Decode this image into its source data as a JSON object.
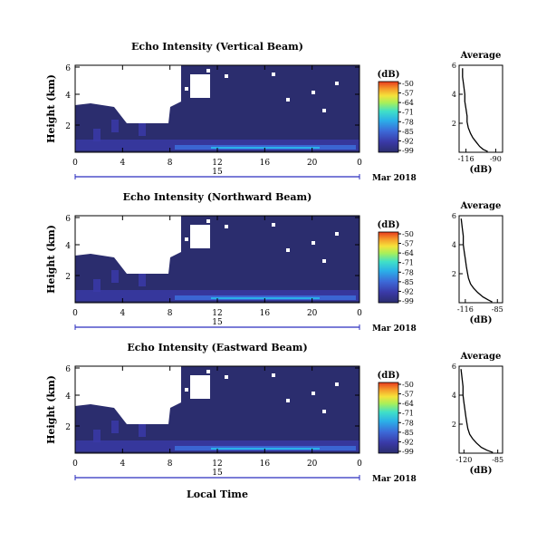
{
  "figure": {
    "xlabel": "Local Time",
    "date_label": "Mar 2018",
    "day_label": "15",
    "unit_label": "(dB)",
    "average_title": "Average",
    "average_xlabel": "(dB)",
    "colorbar_ticks": [
      "-50",
      "-57",
      "-64",
      "-71",
      "-78",
      "-85",
      "-92",
      "-99"
    ],
    "colors": {
      "background_echo": "#2b2d6e",
      "colorbar": [
        "#2b2d6e",
        "#3a3aa8",
        "#3c6ad8",
        "#2bb0e8",
        "#3fe0c8",
        "#a8f05a",
        "#f5e23a",
        "#f59a2a",
        "#e83a1e"
      ]
    }
  },
  "chart_data": [
    {
      "type": "heatmap",
      "title": "Echo Intensity (Vertical Beam)",
      "ylabel": "Height (km)",
      "xticks": [
        "0",
        "4",
        "8",
        "12",
        "16",
        "20",
        "0"
      ],
      "yticks": [
        "6",
        "4",
        "2"
      ],
      "xlim": [
        0,
        24
      ],
      "ylim": [
        0,
        6
      ],
      "zlim": [
        -99,
        -50
      ],
      "average": {
        "xticks": [
          "-116",
          "-90"
        ],
        "yticks": [
          "6",
          "4",
          "2"
        ],
        "xlim": [
          -122,
          -84
        ],
        "ylim": [
          0,
          6
        ],
        "x": [
          -119,
          -119,
          -118,
          -117,
          -117,
          -116,
          -115,
          -115,
          -114,
          -112,
          -110,
          -107,
          -104,
          -101,
          -97
        ],
        "y": [
          5.8,
          5.2,
          4.6,
          4.0,
          3.5,
          3.0,
          2.5,
          2.1,
          1.7,
          1.3,
          1.0,
          0.7,
          0.4,
          0.2,
          0.05
        ]
      }
    },
    {
      "type": "heatmap",
      "title": "Echo Intensity (Northward Beam)",
      "ylabel": "Height (km)",
      "xticks": [
        "0",
        "4",
        "8",
        "12",
        "16",
        "20",
        "0"
      ],
      "yticks": [
        "6",
        "4",
        "2"
      ],
      "xlim": [
        0,
        24
      ],
      "ylim": [
        0,
        6
      ],
      "zlim": [
        -99,
        -50
      ],
      "average": {
        "xticks": [
          "-116",
          "-85"
        ],
        "yticks": [
          "6",
          "4",
          "2"
        ],
        "xlim": [
          -122,
          -80
        ],
        "ylim": [
          0,
          6
        ],
        "x": [
          -120,
          -119,
          -118,
          -118,
          -117,
          -116,
          -115,
          -114,
          -113,
          -111,
          -108,
          -104,
          -99,
          -94,
          -90
        ],
        "y": [
          5.8,
          5.2,
          4.6,
          4.0,
          3.5,
          3.0,
          2.5,
          2.1,
          1.7,
          1.3,
          1.0,
          0.7,
          0.4,
          0.2,
          0.05
        ]
      }
    },
    {
      "type": "heatmap",
      "title": "Echo Intensity (Eastward Beam)",
      "ylabel": "Height (km)",
      "xticks": [
        "0",
        "4",
        "8",
        "12",
        "16",
        "20",
        "0"
      ],
      "yticks": [
        "6",
        "4",
        "2"
      ],
      "xlim": [
        0,
        24
      ],
      "ylim": [
        0,
        6
      ],
      "zlim": [
        -99,
        -50
      ],
      "average": {
        "xticks": [
          "-120",
          "-85"
        ],
        "yticks": [
          "6",
          "4",
          "2"
        ],
        "xlim": [
          -125,
          -80
        ],
        "ylim": [
          0,
          6
        ],
        "x": [
          -123,
          -122,
          -121,
          -121,
          -120,
          -119,
          -118,
          -117,
          -116,
          -114,
          -111,
          -107,
          -102,
          -96,
          -90
        ],
        "y": [
          5.8,
          5.2,
          4.6,
          4.0,
          3.5,
          3.0,
          2.5,
          2.1,
          1.7,
          1.3,
          1.0,
          0.7,
          0.4,
          0.2,
          0.05
        ]
      }
    }
  ]
}
